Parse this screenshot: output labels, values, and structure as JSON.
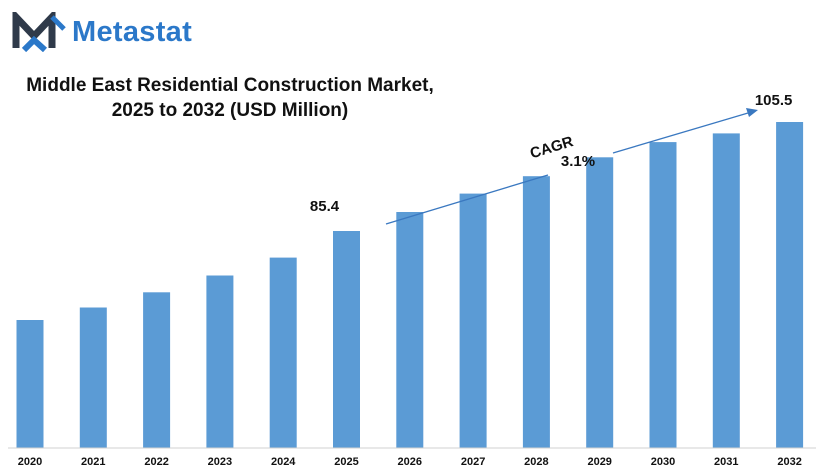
{
  "logo": {
    "text": "Metastat",
    "colors": {
      "dark": "#2f3a4a",
      "blue": "#2b78c9"
    }
  },
  "title_lines": [
    "Middle East Residential Construction Market,",
    "2025 to 2032 (USD Million)"
  ],
  "annotations": {
    "cagr_label": "CAGR",
    "cagr_value": "3.1%",
    "arrow_color": "#3a78c0"
  },
  "chart_data": {
    "type": "bar",
    "title": "Middle East Residential Construction Market, 2025 to 2032 (USD Million)",
    "categories": [
      "2020",
      "2021",
      "2022",
      "2023",
      "2024",
      "2025",
      "2026",
      "2027",
      "2028",
      "2029",
      "2030",
      "2031",
      "2032"
    ],
    "values": [
      69.0,
      71.3,
      74.1,
      77.2,
      80.5,
      85.4,
      88.9,
      92.3,
      95.5,
      99.0,
      101.8,
      103.4,
      105.5
    ],
    "data_labels": [
      {
        "category": "2025",
        "text": "85.4"
      },
      {
        "category": "2032",
        "text": "105.5"
      }
    ],
    "xlabel": "",
    "ylabel": "",
    "ylim": [
      0,
      110
    ],
    "grid": false,
    "legend": "none",
    "bar_color": "#5b9bd5"
  }
}
